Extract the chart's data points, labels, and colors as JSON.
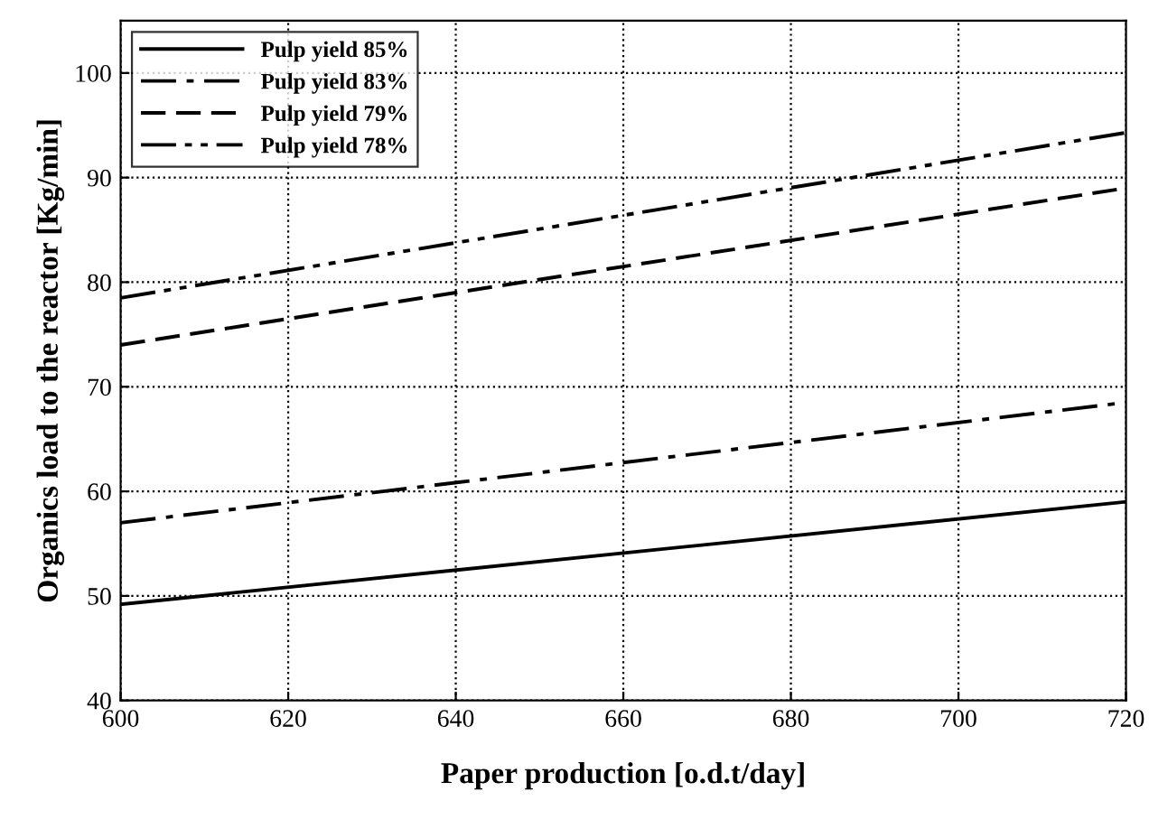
{
  "chart_data": {
    "type": "line",
    "xlabel": "Paper production [o.d.t/day]",
    "ylabel": "Organics load to the reactor [Kg/min]",
    "x": [
      600,
      720
    ],
    "xlim": [
      600,
      720
    ],
    "xticks": [
      600,
      620,
      640,
      660,
      680,
      700,
      720
    ],
    "ylim": [
      40,
      105
    ],
    "yticks": [
      40,
      50,
      60,
      70,
      80,
      90,
      100
    ],
    "grid": true,
    "legend": "top left",
    "marker": "none",
    "series": [
      {
        "name": "Pulp yield 85%",
        "color": "#000000",
        "line_style": "solid",
        "values": [
          49.2,
          59
        ]
      },
      {
        "name": "Pulp yield 83%",
        "color": "#000000",
        "line_style": "dashdot",
        "values": [
          57,
          68.5
        ]
      },
      {
        "name": "Pulp yield 79%",
        "color": "#000000",
        "line_style": "dashed",
        "values": [
          74,
          89
        ]
      },
      {
        "name": "Pulp yield 78%",
        "color": "#000000",
        "line_style": "dashdotdot",
        "values": [
          78.5,
          94.3
        ]
      }
    ]
  }
}
